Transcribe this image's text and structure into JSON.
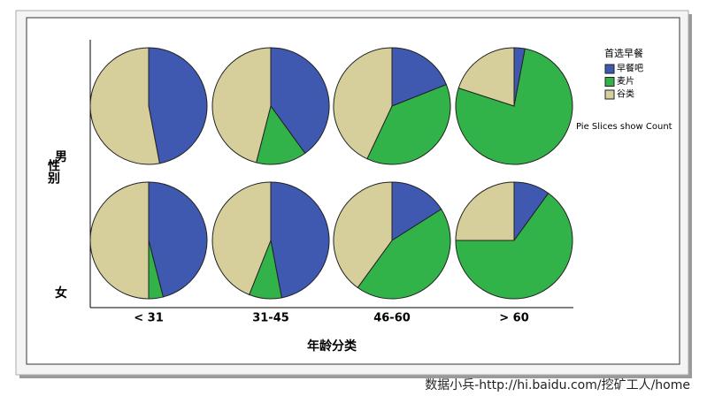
{
  "chart_data": {
    "type": "pie",
    "categories": [
      "< 31",
      "31-45",
      "46-60",
      "> 60"
    ],
    "rows": [
      "男",
      "女"
    ],
    "x_label": "年龄分类",
    "y_label": "性别",
    "legend_title": "首选早餐",
    "note": "Pie Slices show Count",
    "series": [
      {
        "name": "早餐吧",
        "color": "#3f58b0",
        "values": [
          [
            47,
            40,
            19,
            3
          ],
          [
            46,
            47,
            16,
            10
          ]
        ]
      },
      {
        "name": "麦片",
        "color": "#32b34a",
        "values": [
          [
            0,
            14,
            38,
            77
          ],
          [
            4,
            9,
            44,
            65
          ]
        ]
      },
      {
        "name": "谷类",
        "color": "#d6cf9c",
        "values": [
          [
            53,
            46,
            43,
            20
          ],
          [
            50,
            44,
            40,
            25
          ]
        ]
      }
    ]
  },
  "watermark": "数据小兵-http://hi.baidu.com/挖矿工人/home"
}
